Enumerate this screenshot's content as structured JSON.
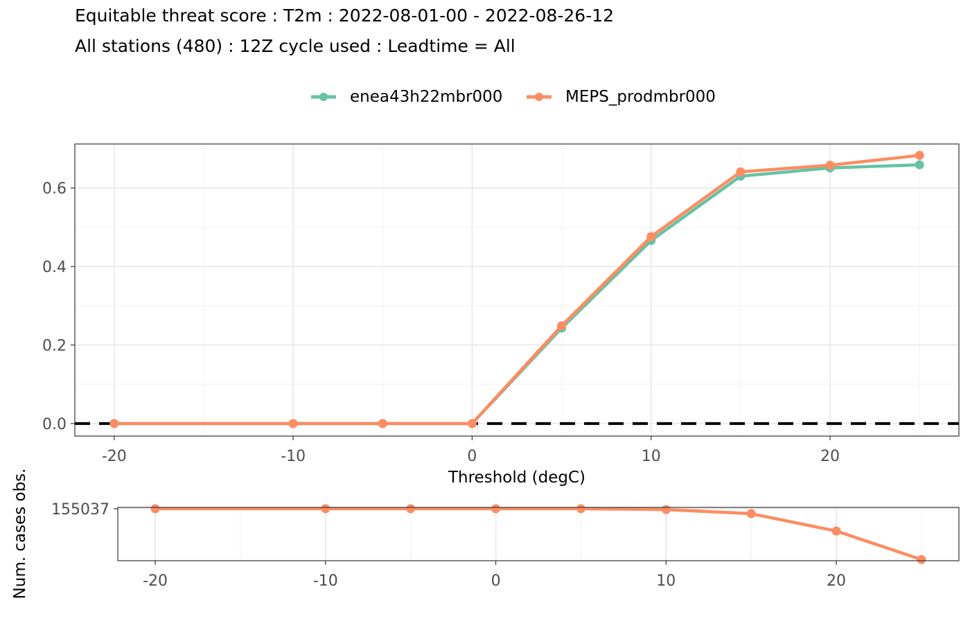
{
  "title_line1": "Equitable threat score : T2m : 2022-08-01-00 - 2022-08-26-12",
  "title_line2": "All stations (480) : 12Z cycle used : Leadtime = All",
  "colors": {
    "series1": "#66c2a5",
    "series2": "#fc8d62",
    "reference": "#000000"
  },
  "legend": [
    {
      "name": "enea43h22mbr000",
      "color": "#66c2a5"
    },
    {
      "name": "MEPS_prodmbr000",
      "color": "#fc8d62"
    }
  ],
  "chart_data": [
    {
      "type": "line",
      "xlabel": "Threshold (degC)",
      "ylabel": "",
      "xlim": [
        -22.2,
        27.2
      ],
      "ylim": [
        -0.032,
        0.712
      ],
      "xticks": [
        -20,
        -10,
        0,
        10,
        20
      ],
      "yticks": [
        0.0,
        0.2,
        0.4,
        0.6
      ],
      "ytick_labels": [
        "0.0",
        "0.2",
        "0.4",
        "0.6"
      ],
      "grid": true,
      "legend_position": "top",
      "reference_line": {
        "y": 0,
        "style": "dashed"
      },
      "x": [
        -20,
        -10,
        -5,
        0,
        5,
        10,
        15,
        20,
        25
      ],
      "series": [
        {
          "name": "enea43h22mbr000",
          "values": [
            0,
            0,
            0,
            0,
            0.243,
            0.466,
            0.63,
            0.651,
            0.659
          ]
        },
        {
          "name": "MEPS_prodmbr000",
          "values": [
            0,
            0,
            0,
            0,
            0.249,
            0.476,
            0.641,
            0.658,
            0.683
          ]
        }
      ]
    },
    {
      "type": "line",
      "xlabel": "",
      "ylabel": "Num. cases obs.",
      "xlim": [
        -22.2,
        27.2
      ],
      "ylim": [
        59500,
        157500
      ],
      "xticks": [
        -20,
        -10,
        0,
        10,
        20
      ],
      "yticks": [
        155037
      ],
      "ytick_labels": [
        "155037"
      ],
      "grid": true,
      "x": [
        -20,
        -10,
        -5,
        0,
        5,
        10,
        15,
        20,
        25
      ],
      "series": [
        {
          "values": [
            155037,
            155037,
            155037,
            155037,
            155037,
            153500,
            146000,
            114000,
            61500
          ]
        }
      ]
    }
  ]
}
